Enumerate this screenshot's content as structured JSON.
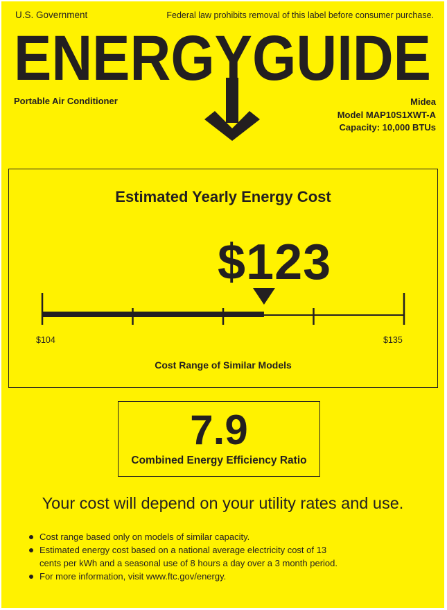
{
  "header": {
    "government": "U.S. Government",
    "notice": "Federal law prohibits removal of this label before consumer purchase.",
    "title": "ENERGYGUIDE",
    "product_type": "Portable Air Conditioner",
    "brand": "Midea",
    "model": "Model MAP10S1XWT-A",
    "capacity": "Capacity: 10,000 BTUs"
  },
  "cost": {
    "heading": "Estimated Yearly Energy Cost",
    "value_label": "$123",
    "value": 123,
    "range_min": 104,
    "range_max": 135,
    "min_label": "$104",
    "max_label": "$135",
    "range_caption": "Cost Range of Similar Models"
  },
  "efficiency": {
    "value": "7.9",
    "label": "Combined Energy Efficiency Ratio"
  },
  "footer": {
    "statement": "Your cost will depend on your utility rates and use.",
    "bullets": [
      "Cost range based only on models of similar capacity.",
      "Estimated energy cost based on a national average electricity cost of 13",
      "cents per kWh and a seasonal use of 8 hours a day over a 3 month period.",
      "For more information, visit www.ftc.gov/energy."
    ]
  },
  "colors": {
    "background": "#fff200",
    "ink": "#231f20"
  }
}
